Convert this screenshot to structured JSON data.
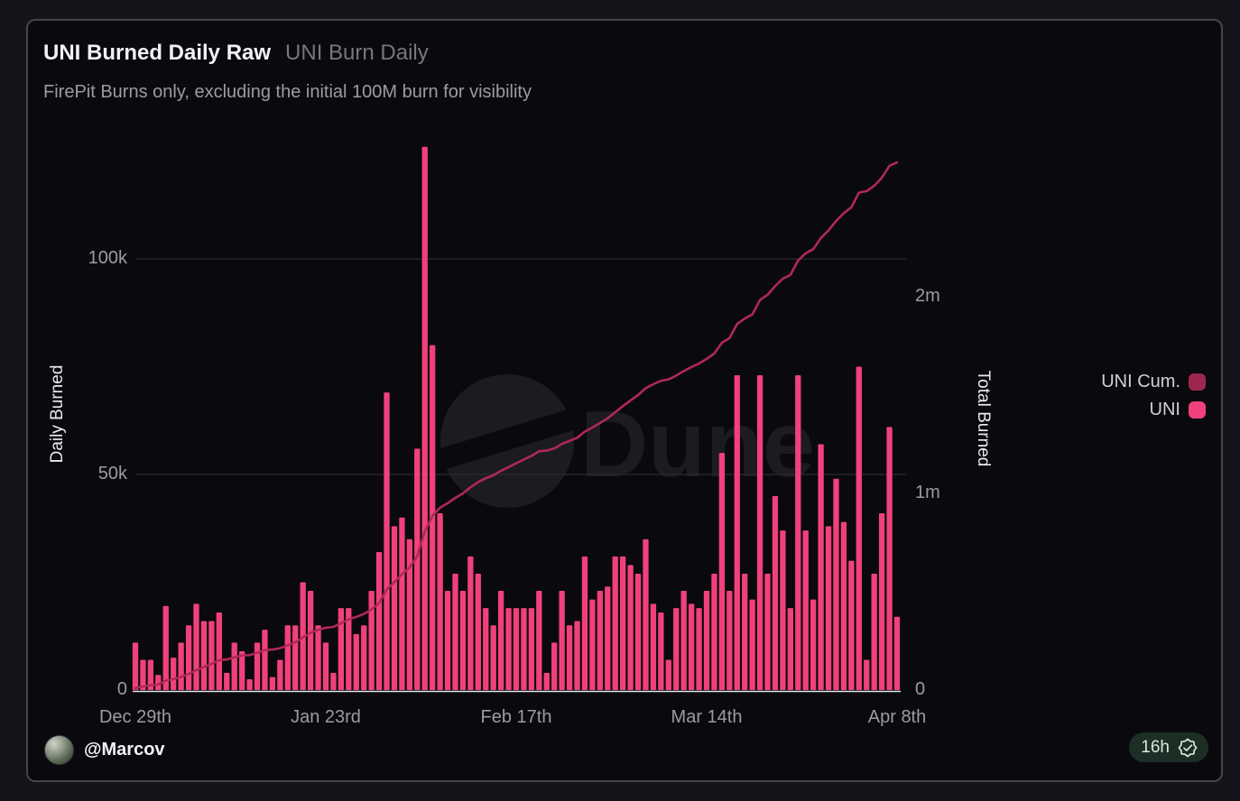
{
  "header": {
    "title": "UNI Burned Daily Raw",
    "title_secondary": "UNI Burn Daily",
    "subtitle": "FirePit Burns only, excluding the initial 100M burn for visibility"
  },
  "watermark": "Dune",
  "legend": [
    {
      "label": "UNI Cum.",
      "swatch_color": "#9e2750"
    },
    {
      "label": "UNI",
      "swatch_color": "#f0417c"
    }
  ],
  "footer": {
    "author": "@Marcov",
    "refreshed_badge": "16h"
  },
  "colors": {
    "background_outer": "#14141a",
    "panel": "#0a0a0e",
    "panel_border": "#45454d",
    "bar": "#f0417c",
    "cumulative_line": "#b02856",
    "grid": "#2b2b31",
    "axis_baseline": "#e4e4e9",
    "badge_bg": "#1c2e26",
    "badge_text": "#d7eadd",
    "watermark": "#1b1b21"
  },
  "chart_data": {
    "type": "bar",
    "title": "UNI Burned Daily Raw",
    "x_axis": {
      "tick_labels": [
        "Dec 29th",
        "Jan 23rd",
        "Feb 17th",
        "Mar 14th",
        "Apr 8th"
      ],
      "tick_indices": [
        0,
        25,
        50,
        75,
        100
      ],
      "n_points": 101
    },
    "y_left": {
      "label": "Daily Burned",
      "ticks": [
        "0",
        "50k",
        "100k"
      ],
      "tick_values": [
        0,
        50000,
        100000
      ],
      "px_per_unit_note": "axis range approx 0-130k"
    },
    "y_right": {
      "label": "Total Burned",
      "ticks": [
        "0",
        "1m",
        "2m"
      ],
      "tick_values": [
        0,
        1000000,
        2000000
      ],
      "range_note": "axis range approx 0-2.9m"
    },
    "series": [
      {
        "name": "UNI",
        "type": "bar",
        "axis": "left",
        "color": "#f0417c",
        "values": [
          11000,
          7000,
          7000,
          3500,
          19500,
          7500,
          11000,
          15000,
          20000,
          16000,
          16000,
          18000,
          4000,
          11000,
          9000,
          2500,
          11000,
          14000,
          3000,
          7000,
          15000,
          15000,
          25000,
          23000,
          15000,
          11000,
          4000,
          19000,
          19000,
          13000,
          15000,
          23000,
          32000,
          69000,
          38000,
          40000,
          35000,
          56000,
          126000,
          80000,
          41000,
          23000,
          27000,
          23000,
          31000,
          27000,
          19000,
          15000,
          23000,
          19000,
          19000,
          19000,
          19000,
          23000,
          4000,
          11000,
          23000,
          15000,
          16000,
          31000,
          21000,
          23000,
          24000,
          31000,
          31000,
          29000,
          27000,
          35000,
          20000,
          18000,
          7000,
          19000,
          23000,
          20000,
          19000,
          23000,
          27000,
          55000,
          23000,
          73000,
          27000,
          21000,
          73000,
          27000,
          45000,
          37000,
          19000,
          73000,
          37000,
          21000,
          57000,
          38000,
          49000,
          39000,
          30000,
          75000,
          7000,
          27000,
          41000,
          61000,
          17000
        ]
      },
      {
        "name": "UNI Cum.",
        "type": "line",
        "axis": "right",
        "color": "#b02856",
        "derived": "cumulative sum of UNI daily values, ends near 2.7m"
      }
    ]
  }
}
